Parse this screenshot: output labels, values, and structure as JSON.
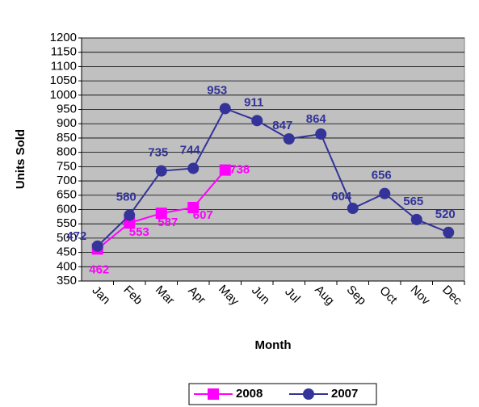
{
  "chart_data": {
    "type": "line",
    "categories": [
      "Jan",
      "Feb",
      "Mar",
      "Apr",
      "May",
      "Jun",
      "Jul",
      "Aug",
      "Sep",
      "Oct",
      "Nov",
      "Dec"
    ],
    "series": [
      {
        "name": "2008",
        "color": "#ff00ff",
        "marker": "square",
        "values": [
          462,
          553,
          587,
          607,
          738,
          null,
          null,
          null,
          null,
          null,
          null,
          null
        ]
      },
      {
        "name": "2007",
        "color": "#333399",
        "marker": "circle",
        "values": [
          472,
          580,
          735,
          744,
          953,
          911,
          847,
          864,
          604,
          656,
          565,
          520
        ]
      }
    ],
    "xlabel": "Month",
    "ylabel": "Units Sold",
    "ylim": [
      350,
      1200
    ],
    "yticks": [
      350,
      400,
      450,
      500,
      550,
      600,
      650,
      700,
      750,
      800,
      850,
      900,
      950,
      1000,
      1050,
      1100,
      1150,
      1200
    ],
    "grid": true,
    "legend": "bottom"
  }
}
